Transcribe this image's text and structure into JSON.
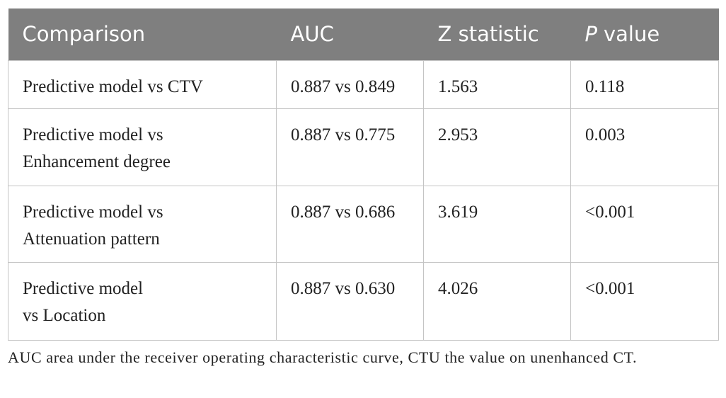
{
  "table": {
    "headers": [
      "Comparison",
      "AUC",
      "Z statistic",
      {
        "italic": "P",
        "rest": "value"
      }
    ],
    "rows": [
      [
        [
          "Predictive model vs CTV"
        ],
        "0.887 vs 0.849",
        "1.563",
        "0.118"
      ],
      [
        [
          "Predictive model vs",
          "Enhancement degree"
        ],
        "0.887 vs 0.775",
        "2.953",
        "0.003"
      ],
      [
        [
          "Predictive model vs",
          "Attenuation pattern"
        ],
        "0.887 vs 0.686",
        "3.619",
        "<0.001"
      ],
      [
        [
          "Predictive model",
          "vs Location"
        ],
        "0.887 vs 0.630",
        "4.026",
        "<0.001"
      ]
    ]
  },
  "footnote": "AUC area under the receiver operating characteristic curve, CTU the value on unenhanced CT."
}
